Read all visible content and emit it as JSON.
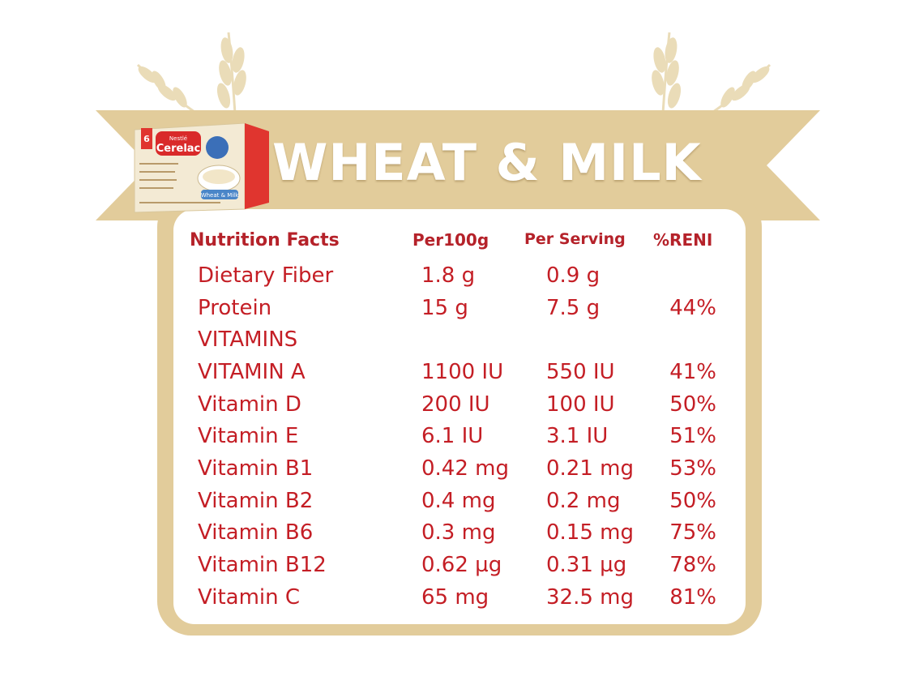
{
  "banner": {
    "title": "WHEAT & MILK"
  },
  "product_box": {
    "brand": "Nestlé",
    "name": "Cerelac",
    "flavor": "Wheat & Milk",
    "age_badge": "6"
  },
  "table": {
    "headers": {
      "label": "Nutrition Facts",
      "per100": "Per100g",
      "per_serving": "Per Serving",
      "reni": "%RENI"
    },
    "rows": [
      {
        "name": "Dietary Fiber",
        "per100": "1.8 g",
        "per_serving": "0.9 g",
        "reni": ""
      },
      {
        "name": "Protein",
        "per100": "15 g",
        "per_serving": "7.5 g",
        "reni": "44%"
      },
      {
        "name": "VITAMINS",
        "per100": "",
        "per_serving": "",
        "reni": ""
      },
      {
        "name": "VITAMIN A",
        "per100": "1100 IU",
        "per_serving": "550 IU",
        "reni": "41%"
      },
      {
        "name": "Vitamin D",
        "per100": "200 IU",
        "per_serving": "100 IU",
        "reni": "50%"
      },
      {
        "name": "Vitamin E",
        "per100": "6.1 IU",
        "per_serving": "3.1 IU",
        "reni": "51%"
      },
      {
        "name": "Vitamin B1",
        "per100": "0.42 mg",
        "per_serving": "0.21 mg",
        "reni": "53%"
      },
      {
        "name": "Vitamin B2",
        "per100": "0.4 mg",
        "per_serving": "0.2 mg",
        "reni": "50%"
      },
      {
        "name": "Vitamin B6",
        "per100": "0.3 mg",
        "per_serving": "0.15 mg",
        "reni": "75%"
      },
      {
        "name": "Vitamin B12",
        "per100": "0.62 µg",
        "per_serving": "0.31 µg",
        "reni": "78%"
      },
      {
        "name": "Vitamin C",
        "per100": "65 mg",
        "per_serving": "32.5 mg",
        "reni": "81%"
      }
    ]
  },
  "colors": {
    "accent_red": "#c41e25",
    "header_red": "#b5222a",
    "banner_gold": "#e2cc9b",
    "wheat": "#ead9b4"
  }
}
